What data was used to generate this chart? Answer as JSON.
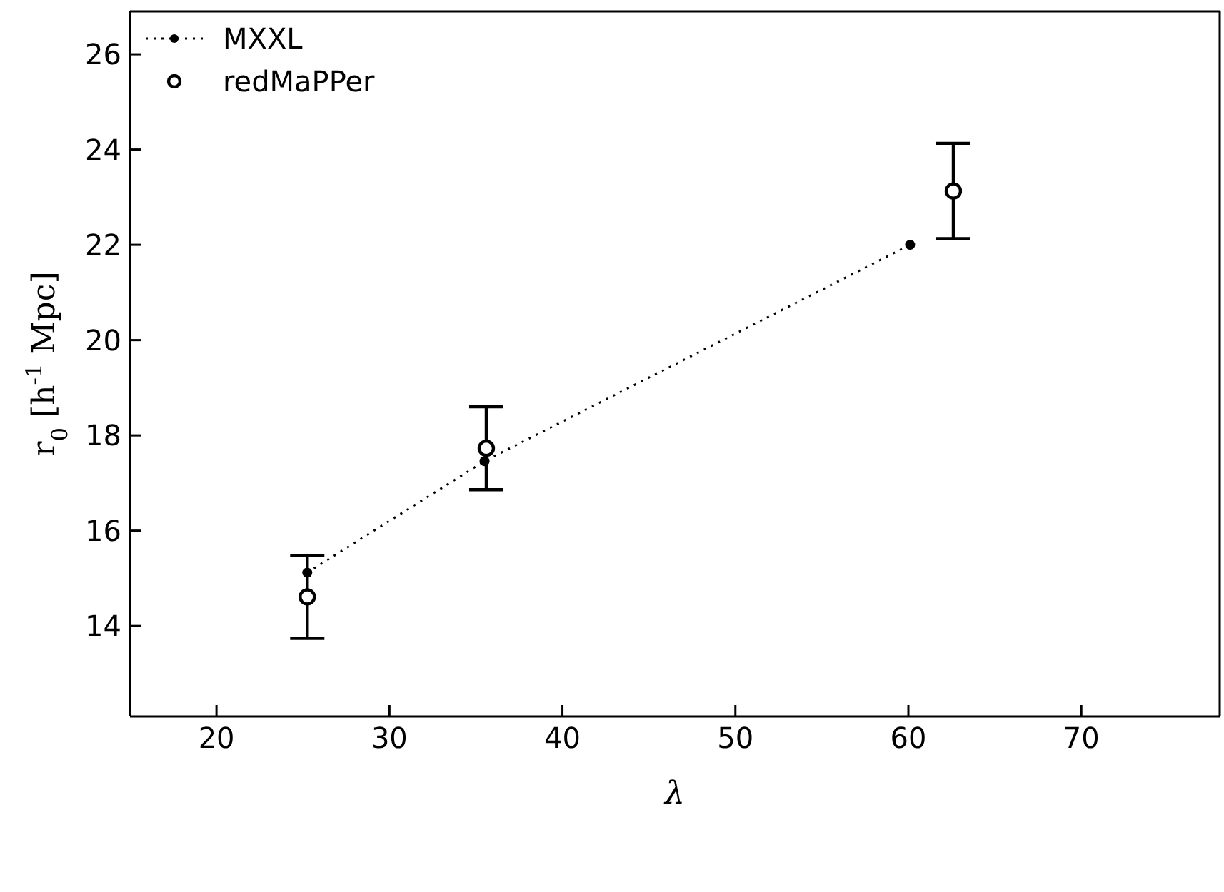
{
  "chart_data": {
    "type": "scatter",
    "xlabel": "λ",
    "ylabel": "r$_{0}$ [h$^{-1}$ Mpc]",
    "xlim": [
      15,
      78
    ],
    "xticks": [
      20,
      30,
      40,
      50,
      60,
      70
    ],
    "ylim": [
      12.1,
      26.9
    ],
    "yticks": [
      14,
      16,
      18,
      20,
      22,
      24,
      26
    ],
    "legend": "top left",
    "marker": "circle",
    "series": [
      {
        "name": "MXXL",
        "type": "line",
        "line_style": "dotted",
        "color": "#000000",
        "x": [
          25.25,
          35.5,
          60.1
        ],
        "values": [
          15.12,
          17.46,
          22.0
        ]
      },
      {
        "name": "redMaPPer",
        "type": "scatter",
        "color": "#000000",
        "x": [
          25.25,
          35.6,
          62.6
        ],
        "values": [
          14.61,
          17.73,
          23.13
        ],
        "errors": [
          0.87,
          0.87,
          1.0
        ]
      }
    ]
  }
}
